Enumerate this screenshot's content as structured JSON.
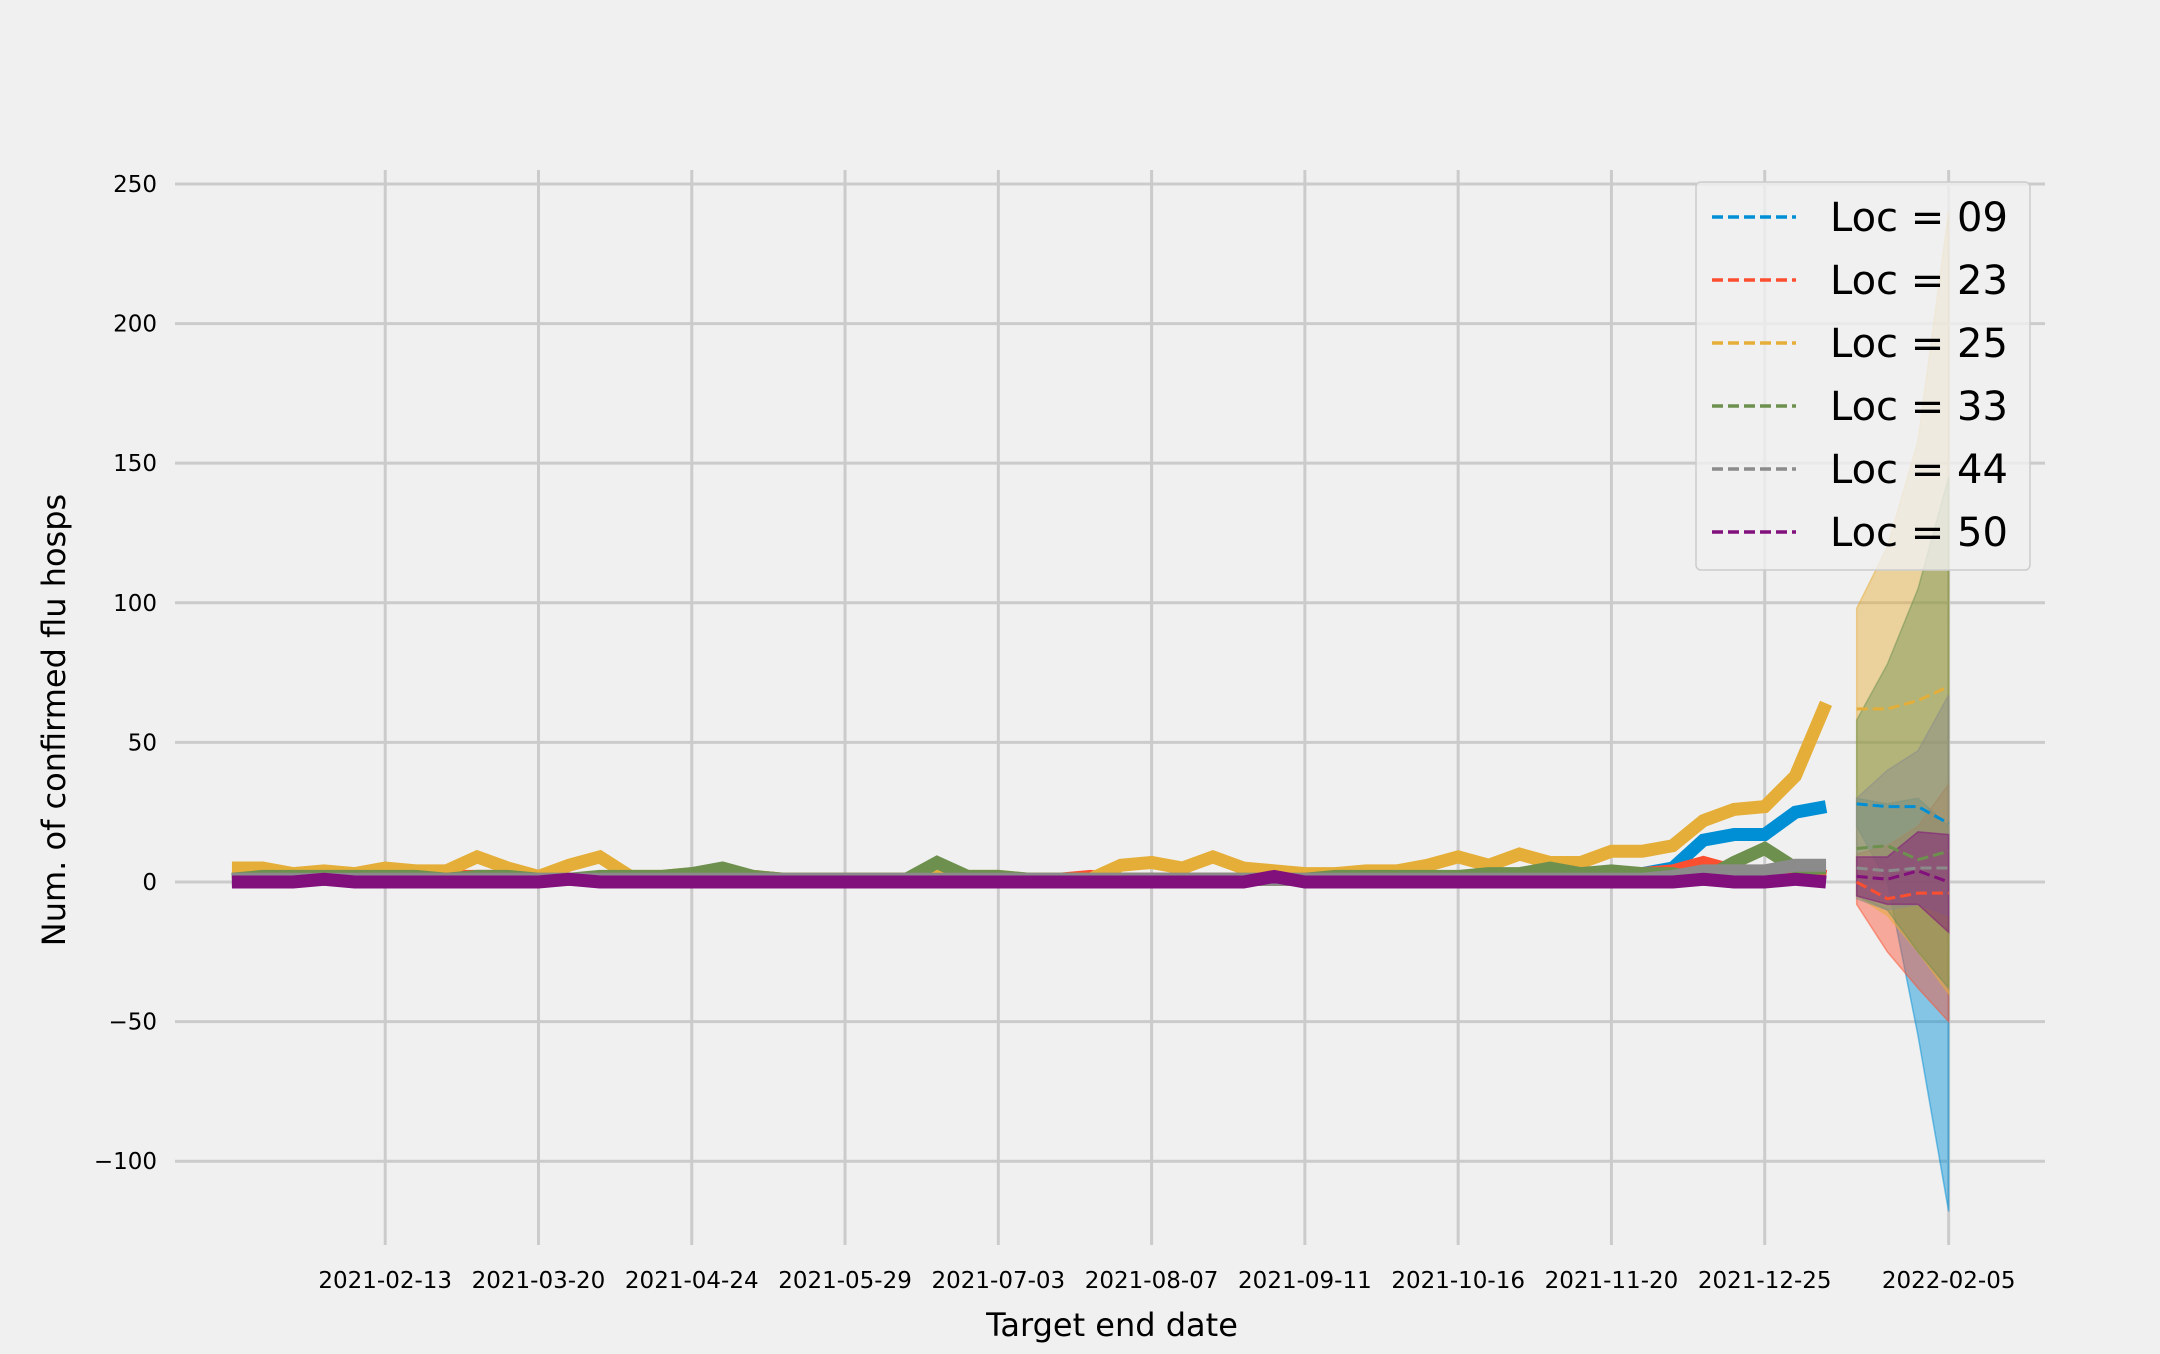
{
  "chart_data": {
    "type": "line",
    "title": "",
    "xlabel": "Target end date",
    "ylabel": "Num. of confirmed flu hosps",
    "ylim": [
      -130,
      255
    ],
    "xlim": [
      "2020-12-27",
      "2022-02-27"
    ],
    "grid": true,
    "legend_position": "top-right",
    "x_ticks": [
      "2021-02-13",
      "2021-03-20",
      "2021-04-24",
      "2021-05-29",
      "2021-07-03",
      "2021-08-07",
      "2021-09-11",
      "2021-10-16",
      "2021-11-20",
      "2021-12-25",
      "2022-02-05"
    ],
    "y_ticks": [
      -100,
      -50,
      0,
      50,
      100,
      150,
      200,
      250
    ],
    "history_start": "2021-01-09",
    "history_step_days": 7,
    "forecast_x": [
      "2022-01-15",
      "2022-01-22",
      "2022-01-29",
      "2022-02-05"
    ],
    "series": [
      {
        "name": "Loc = 09",
        "color": "#008fd5",
        "history": [
          1,
          1,
          2,
          1,
          2,
          1,
          1,
          1,
          1,
          1,
          2,
          1,
          1,
          1,
          1,
          1,
          1,
          1,
          1,
          1,
          1,
          1,
          1,
          1,
          1,
          1,
          1,
          1,
          1,
          1,
          1,
          1,
          1,
          1,
          1,
          1,
          1,
          1,
          1,
          1,
          1,
          1,
          1,
          1,
          1,
          1,
          3,
          5,
          15,
          17,
          17,
          25,
          27
        ],
        "forecast": {
          "median": [
            28,
            27,
            27,
            21
          ],
          "lower": [
            20,
            0,
            -55,
            -118
          ],
          "upper": [
            30,
            28,
            30,
            20
          ]
        }
      },
      {
        "name": "Loc = 23",
        "color": "#fc4f30",
        "history": [
          1,
          1,
          2,
          1,
          1,
          2,
          3,
          2,
          2,
          2,
          1,
          1,
          1,
          1,
          1,
          2,
          2,
          2,
          1,
          1,
          1,
          1,
          1,
          1,
          1,
          1,
          1,
          1,
          2,
          1,
          1,
          1,
          1,
          1,
          1,
          1,
          1,
          1,
          1,
          1,
          1,
          1,
          1,
          1,
          1,
          1,
          3,
          4,
          7,
          4,
          3,
          4,
          2
        ],
        "forecast": {
          "median": [
            0,
            -6,
            -4,
            -4
          ],
          "lower": [
            -8,
            -25,
            -38,
            -50
          ],
          "upper": [
            10,
            13,
            20,
            35
          ]
        }
      },
      {
        "name": "Loc = 25",
        "color": "#e5ae38",
        "history": [
          5,
          5,
          3,
          4,
          3,
          5,
          4,
          4,
          9,
          5,
          2,
          6,
          9,
          2,
          2,
          3,
          4,
          2,
          1,
          1,
          1,
          1,
          1,
          2,
          2,
          2,
          1,
          1,
          1,
          6,
          7,
          5,
          9,
          5,
          4,
          3,
          3,
          4,
          4,
          6,
          9,
          6,
          10,
          7,
          7,
          11,
          11,
          13,
          22,
          26,
          27,
          38,
          64
        ],
        "forecast": {
          "median": [
            62,
            62,
            65,
            70
          ],
          "lower": [
            -5,
            -12,
            -25,
            -40
          ],
          "upper": [
            98,
            120,
            158,
            240
          ]
        }
      },
      {
        "name": "Loc = 33",
        "color": "#6d904f",
        "history": [
          1,
          2,
          2,
          2,
          2,
          2,
          2,
          1,
          2,
          2,
          1,
          1,
          2,
          2,
          2,
          3,
          5,
          2,
          1,
          1,
          1,
          1,
          1,
          7,
          2,
          2,
          1,
          1,
          1,
          1,
          1,
          1,
          1,
          1,
          1,
          1,
          2,
          2,
          2,
          2,
          2,
          3,
          3,
          5,
          3,
          4,
          3,
          3,
          1,
          7,
          12,
          5,
          5
        ],
        "forecast": {
          "median": [
            12,
            13,
            8,
            11
          ],
          "lower": [
            -5,
            -10,
            -25,
            -38
          ],
          "upper": [
            58,
            78,
            105,
            145
          ]
        }
      },
      {
        "name": "Loc = 44",
        "color": "#8b8b8b",
        "history": [
          1,
          1,
          1,
          1,
          1,
          1,
          1,
          1,
          1,
          1,
          1,
          1,
          1,
          1,
          1,
          1,
          1,
          1,
          1,
          1,
          1,
          1,
          1,
          1,
          1,
          1,
          1,
          1,
          1,
          1,
          1,
          1,
          1,
          1,
          1,
          1,
          1,
          1,
          1,
          1,
          1,
          1,
          1,
          1,
          1,
          1,
          1,
          2,
          4,
          4,
          4,
          6,
          6
        ],
        "forecast": {
          "median": [
            5,
            4,
            5,
            5
          ],
          "lower": [
            -6,
            -10,
            -8,
            -12
          ],
          "upper": [
            30,
            40,
            47,
            67
          ]
        }
      },
      {
        "name": "Loc = 50",
        "color": "#810f7c",
        "history": [
          0,
          0,
          0,
          1,
          0,
          0,
          0,
          0,
          0,
          0,
          0,
          1,
          0,
          0,
          0,
          0,
          0,
          0,
          0,
          0,
          0,
          0,
          0,
          0,
          0,
          0,
          0,
          0,
          0,
          0,
          0,
          0,
          0,
          0,
          2,
          0,
          0,
          0,
          0,
          0,
          0,
          0,
          0,
          0,
          0,
          0,
          0,
          0,
          1,
          0,
          0,
          1,
          0
        ],
        "forecast": {
          "median": [
            2,
            1,
            4,
            0
          ],
          "lower": [
            -5,
            -8,
            -8,
            -18
          ],
          "upper": [
            9,
            9,
            18,
            17
          ]
        }
      }
    ]
  }
}
